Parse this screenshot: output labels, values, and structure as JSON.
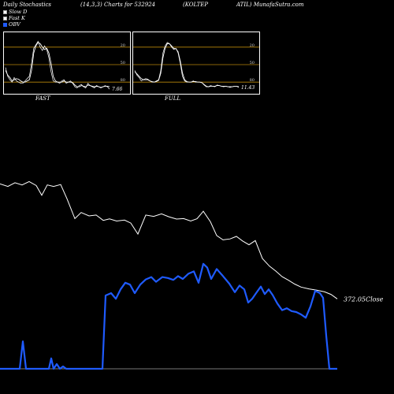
{
  "header": {
    "left": "Daily Stochastics",
    "mid": "(14,3,3) Charts for 532924",
    "company": "(KOLTEP",
    "right": "ATIL) MunafaSutra.com"
  },
  "legend": [
    {
      "label": "Slow D",
      "color": "#ffffff"
    },
    {
      "label": "Fast K",
      "color": "#ffffff"
    },
    {
      "label": "OBV",
      "color": "#1f5bff"
    }
  ],
  "colors": {
    "obv": "#1f5bff",
    "close": "#ffffff",
    "refline": "#b8860b",
    "panel_bg": "#000000"
  },
  "chart_data": [
    {
      "type": "line",
      "panel": "FAST",
      "label": "FAST",
      "last_value": "7.66",
      "ylim": [
        0,
        100
      ],
      "ref_lines": [
        20,
        50,
        80
      ],
      "tick_labels": [
        "80",
        "50",
        "20"
      ],
      "series": [
        {
          "name": "Slow D",
          "values": [
            40,
            32,
            28,
            22,
            24,
            26,
            25,
            22,
            20,
            20,
            22,
            24,
            40,
            70,
            82,
            88,
            86,
            80,
            76,
            78,
            70,
            52,
            30,
            22,
            20,
            20,
            20,
            22,
            20,
            20,
            20,
            19,
            15,
            12,
            12,
            14,
            13,
            12,
            15,
            14,
            13,
            12,
            13,
            12,
            11,
            12,
            13,
            13,
            12
          ]
        },
        {
          "name": "Fast K",
          "values": [
            45,
            30,
            24,
            20,
            28,
            22,
            20,
            18,
            18,
            22,
            26,
            30,
            52,
            78,
            84,
            90,
            80,
            74,
            82,
            76,
            62,
            38,
            22,
            20,
            20,
            18,
            22,
            24,
            18,
            20,
            22,
            18,
            12,
            10,
            14,
            16,
            12,
            10,
            18,
            14,
            12,
            10,
            14,
            12,
            10,
            12,
            14,
            12,
            8
          ]
        }
      ]
    },
    {
      "type": "line",
      "panel": "FULL",
      "label": "FULL",
      "last_value": "11.43",
      "ylim": [
        0,
        100
      ],
      "ref_lines": [
        20,
        50,
        80
      ],
      "tick_labels": [
        "80",
        "50",
        "20"
      ],
      "series": [
        {
          "name": "Slow D",
          "values": [
            38,
            34,
            30,
            26,
            24,
            24,
            24,
            22,
            21,
            20,
            21,
            23,
            35,
            62,
            78,
            86,
            86,
            82,
            78,
            77,
            72,
            56,
            36,
            24,
            21,
            20,
            20,
            21,
            21,
            20,
            20,
            19,
            16,
            13,
            12,
            13,
            13,
            13,
            14,
            14,
            13,
            13,
            13,
            12,
            12,
            12,
            13,
            13,
            12
          ]
        },
        {
          "name": "Fast K",
          "values": [
            40,
            32,
            28,
            22,
            24,
            26,
            25,
            22,
            20,
            20,
            22,
            24,
            40,
            70,
            82,
            88,
            86,
            80,
            76,
            78,
            70,
            52,
            30,
            22,
            20,
            20,
            20,
            22,
            20,
            20,
            20,
            19,
            15,
            12,
            12,
            14,
            13,
            12,
            15,
            14,
            13,
            12,
            13,
            12,
            11,
            12,
            13,
            13,
            11
          ]
        }
      ]
    },
    {
      "type": "line",
      "panel": "main",
      "close_label": "372.05",
      "close_suffix": "Close",
      "series": [
        {
          "name": "Close",
          "values": [
            [
              0,
              378.4
            ],
            [
              10,
              376.9
            ],
            [
              19,
              379.1
            ],
            [
              28,
              377.8
            ],
            [
              37,
              379.8
            ],
            [
              46,
              377.4
            ],
            [
              53,
              371.6
            ],
            [
              60,
              377.8
            ],
            [
              68,
              376.9
            ],
            [
              77,
              378.0
            ],
            [
              85,
              369.5
            ],
            [
              95,
              357.6
            ],
            [
              103,
              361.2
            ],
            [
              113,
              359.2
            ],
            [
              122,
              359.7
            ],
            [
              131,
              356.5
            ],
            [
              139,
              357.4
            ],
            [
              148,
              356.1
            ],
            [
              158,
              356.7
            ],
            [
              166,
              354.9
            ],
            [
              175,
              348.3
            ],
            [
              185,
              359.7
            ],
            [
              195,
              358.9
            ],
            [
              205,
              360.4
            ],
            [
              214,
              358.7
            ],
            [
              224,
              357.3
            ],
            [
              233,
              357.6
            ],
            [
              242,
              356.1
            ],
            [
              250,
              357.5
            ],
            [
              258,
              362.0
            ],
            [
              267,
              355.7
            ],
            [
              275,
              347.4
            ],
            [
              283,
              344.8
            ],
            [
              292,
              345.4
            ],
            [
              300,
              346.9
            ],
            [
              308,
              344.1
            ],
            [
              316,
              341.9
            ],
            [
              324,
              344.4
            ],
            [
              333,
              333.6
            ],
            [
              342,
              329.0
            ],
            [
              350,
              326.1
            ],
            [
              358,
              322.7
            ],
            [
              366,
              320.6
            ],
            [
              374,
              318.3
            ],
            [
              382,
              316.5
            ],
            [
              392,
              315.4
            ],
            [
              402,
              314.6
            ],
            [
              412,
              313.6
            ],
            [
              420,
              312.1
            ],
            [
              428,
              309.4
            ]
          ]
        },
        {
          "name": "OBV",
          "values": [
            [
              0,
              0
            ],
            [
              25,
              0
            ],
            [
              29,
              58
            ],
            [
              33,
              0
            ],
            [
              62,
              0
            ],
            [
              65,
              22
            ],
            [
              68,
              0
            ],
            [
              72,
              10
            ],
            [
              76,
              0
            ],
            [
              80,
              5
            ],
            [
              84,
              0
            ],
            [
              130,
              0
            ],
            [
              134,
              155
            ],
            [
              141,
              160
            ],
            [
              147,
              148
            ],
            [
              153,
              168
            ],
            [
              159,
              182
            ],
            [
              165,
              178
            ],
            [
              171,
              160
            ],
            [
              178,
              178
            ],
            [
              185,
              189
            ],
            [
              192,
              194
            ],
            [
              198,
              184
            ],
            [
              206,
              194
            ],
            [
              213,
              192
            ],
            [
              220,
              188
            ],
            [
              226,
              196
            ],
            [
              232,
              190
            ],
            [
              239,
              201
            ],
            [
              246,
              206
            ],
            [
              252,
              182
            ],
            [
              258,
              222
            ],
            [
              263,
              214
            ],
            [
              268,
              190
            ],
            [
              275,
              211
            ],
            [
              283,
              196
            ],
            [
              291,
              180
            ],
            [
              298,
              162
            ],
            [
              304,
              176
            ],
            [
              310,
              168
            ],
            [
              315,
              140
            ],
            [
              320,
              148
            ],
            [
              325,
              160
            ],
            [
              331,
              174
            ],
            [
              336,
              158
            ],
            [
              341,
              168
            ],
            [
              346,
              156
            ],
            [
              352,
              138
            ],
            [
              358,
              124
            ],
            [
              364,
              128
            ],
            [
              370,
              122
            ],
            [
              376,
              120
            ],
            [
              382,
              115
            ],
            [
              388,
              108
            ],
            [
              394,
              132
            ],
            [
              400,
              165
            ],
            [
              406,
              160
            ],
            [
              410,
              150
            ],
            [
              414,
              70
            ],
            [
              418,
              0
            ],
            [
              428,
              0
            ]
          ]
        }
      ]
    }
  ]
}
